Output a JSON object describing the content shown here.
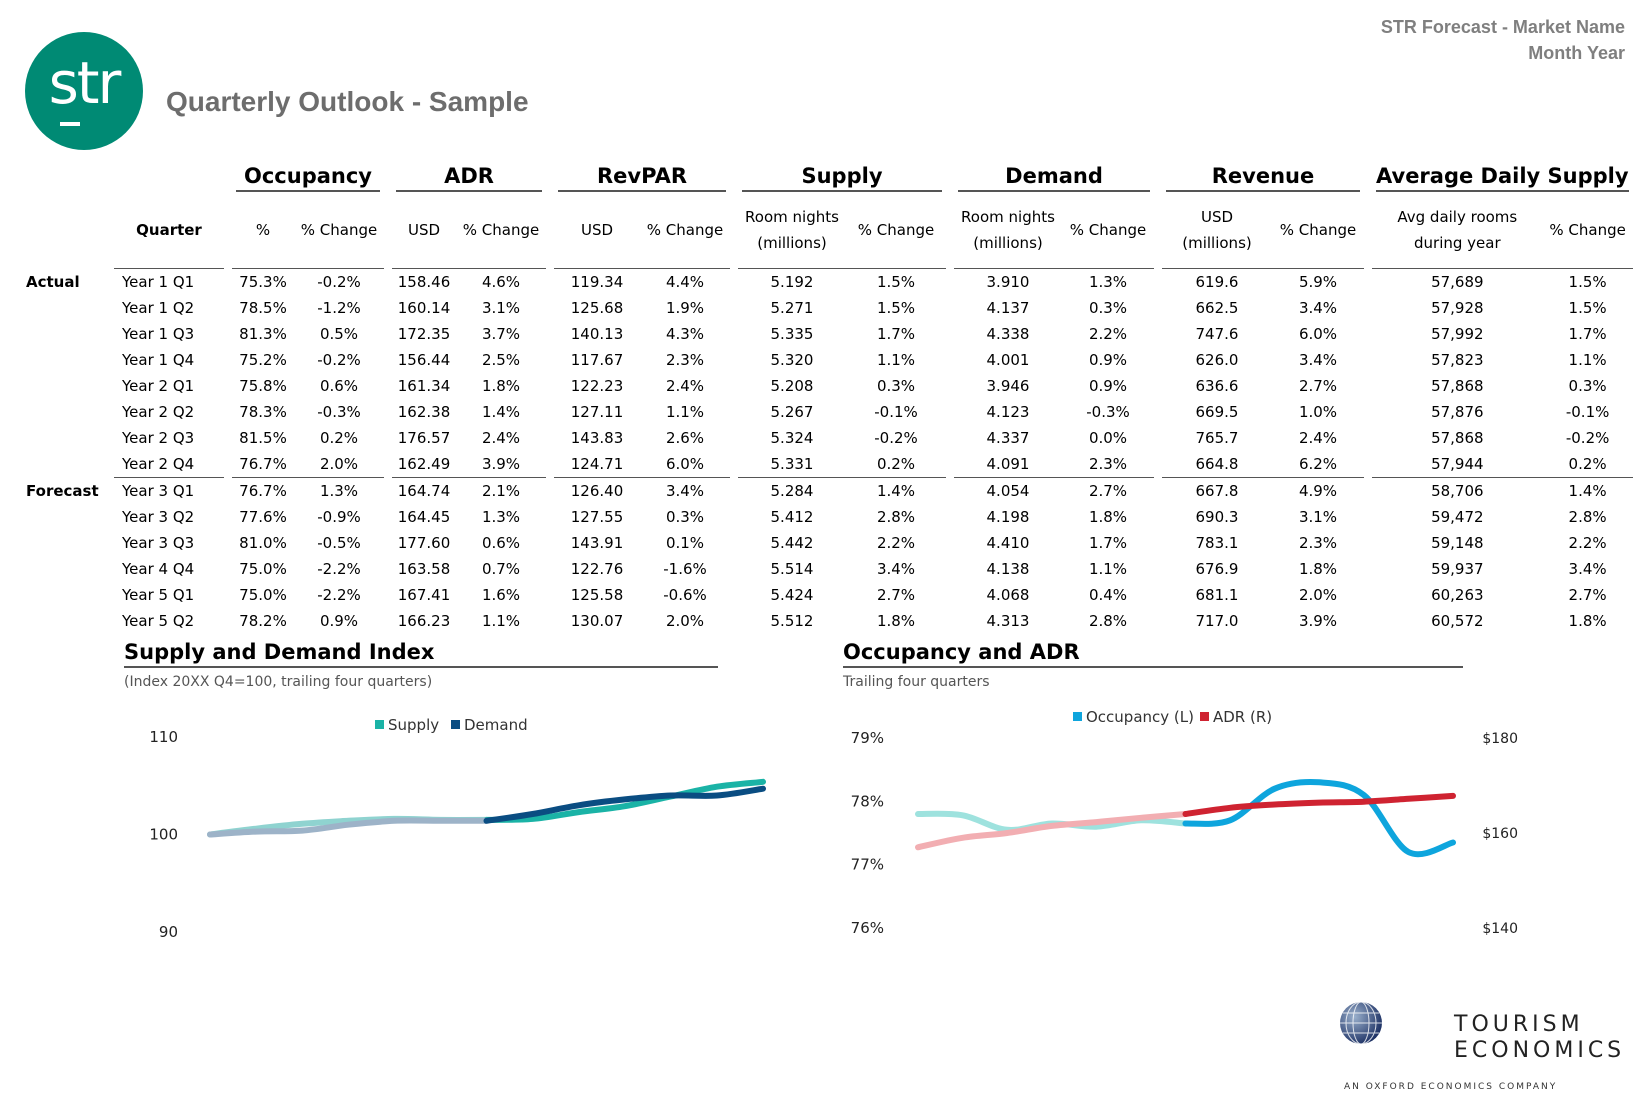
{
  "header": {
    "report_name": "STR Forecast - Market Name",
    "period": "Month Year",
    "title": "Quarterly Outlook - Sample",
    "logo_text": "str"
  },
  "table": {
    "groups": [
      "Occupancy",
      "ADR",
      "RevPAR",
      "Supply",
      "Demand",
      "Revenue",
      "Average Daily Supply"
    ],
    "subheaders": {
      "quarter": "Quarter",
      "occ_pct": "%",
      "change": "% Change",
      "usd": "USD",
      "room_nights_1": "Room nights",
      "room_nights_2": "(millions)",
      "rev_usd_1": "USD",
      "rev_usd_2": "(millions)",
      "avg_daily_1": "Avg daily rooms",
      "avg_daily_2": "during year"
    },
    "section_labels": {
      "actual": "Actual",
      "forecast": "Forecast"
    },
    "rows": [
      [
        "Year 1  Q1",
        "75.3%",
        "-0.2%",
        "158.46",
        "4.6%",
        "119.34",
        "4.4%",
        "5.192",
        "1.5%",
        "3.910",
        "1.3%",
        "619.6",
        "5.9%",
        "57,689",
        "1.5%"
      ],
      [
        "Year 1 Q2",
        "78.5%",
        "-1.2%",
        "160.14",
        "3.1%",
        "125.68",
        "1.9%",
        "5.271",
        "1.5%",
        "4.137",
        "0.3%",
        "662.5",
        "3.4%",
        "57,928",
        "1.5%"
      ],
      [
        "Year 1  Q3",
        "81.3%",
        "0.5%",
        "172.35",
        "3.7%",
        "140.13",
        "4.3%",
        "5.335",
        "1.7%",
        "4.338",
        "2.2%",
        "747.6",
        "6.0%",
        "57,992",
        "1.7%"
      ],
      [
        "Year 1 Q4",
        "75.2%",
        "-0.2%",
        "156.44",
        "2.5%",
        "117.67",
        "2.3%",
        "5.320",
        "1.1%",
        "4.001",
        "0.9%",
        "626.0",
        "3.4%",
        "57,823",
        "1.1%"
      ],
      [
        "Year 2 Q1",
        "75.8%",
        "0.6%",
        "161.34",
        "1.8%",
        "122.23",
        "2.4%",
        "5.208",
        "0.3%",
        "3.946",
        "0.9%",
        "636.6",
        "2.7%",
        "57,868",
        "0.3%"
      ],
      [
        "Year 2 Q2",
        "78.3%",
        "-0.3%",
        "162.38",
        "1.4%",
        "127.11",
        "1.1%",
        "5.267",
        "-0.1%",
        "4.123",
        "-0.3%",
        "669.5",
        "1.0%",
        "57,876",
        "-0.1%"
      ],
      [
        "Year 2 Q3",
        "81.5%",
        "0.2%",
        "176.57",
        "2.4%",
        "143.83",
        "2.6%",
        "5.324",
        "-0.2%",
        "4.337",
        "0.0%",
        "765.7",
        "2.4%",
        "57,868",
        "-0.2%"
      ],
      [
        "Year 2 Q4",
        "76.7%",
        "2.0%",
        "162.49",
        "3.9%",
        "124.71",
        "6.0%",
        "5.331",
        "0.2%",
        "4.091",
        "2.3%",
        "664.8",
        "6.2%",
        "57,944",
        "0.2%"
      ],
      [
        "Year 3 Q1",
        "76.7%",
        "1.3%",
        "164.74",
        "2.1%",
        "126.40",
        "3.4%",
        "5.284",
        "1.4%",
        "4.054",
        "2.7%",
        "667.8",
        "4.9%",
        "58,706",
        "1.4%"
      ],
      [
        "Year 3 Q2",
        "77.6%",
        "-0.9%",
        "164.45",
        "1.3%",
        "127.55",
        "0.3%",
        "5.412",
        "2.8%",
        "4.198",
        "1.8%",
        "690.3",
        "3.1%",
        "59,472",
        "2.8%"
      ],
      [
        "Year 3 Q3",
        "81.0%",
        "-0.5%",
        "177.60",
        "0.6%",
        "143.91",
        "0.1%",
        "5.442",
        "2.2%",
        "4.410",
        "1.7%",
        "783.1",
        "2.3%",
        "59,148",
        "2.2%"
      ],
      [
        "Year 4 Q4",
        "75.0%",
        "-2.2%",
        "163.58",
        "0.7%",
        "122.76",
        "-1.6%",
        "5.514",
        "3.4%",
        "4.138",
        "1.1%",
        "676.9",
        "1.8%",
        "59,937",
        "3.4%"
      ],
      [
        "Year 5 Q1",
        "75.0%",
        "-2.2%",
        "167.41",
        "1.6%",
        "125.58",
        "-0.6%",
        "5.424",
        "2.7%",
        "4.068",
        "0.4%",
        "681.1",
        "2.0%",
        "60,263",
        "2.7%"
      ],
      [
        "Year 5 Q2",
        "78.2%",
        "0.9%",
        "166.23",
        "1.1%",
        "130.07",
        "2.0%",
        "5.512",
        "1.8%",
        "4.313",
        "2.8%",
        "717.0",
        "3.9%",
        "60,572",
        "1.8%"
      ]
    ]
  },
  "chart_left": {
    "title": "Supply and Demand Index",
    "subtitle": "(Index 20XX Q4=100, trailing four quarters)"
  },
  "chart_right": {
    "title": "Occupancy and ADR",
    "subtitle": "Trailing four quarters"
  },
  "chart_data": [
    {
      "type": "line",
      "title": "Supply and Demand Index",
      "subtitle": "(Index 20XX Q4=100, trailing four quarters)",
      "ylim": [
        90,
        110
      ],
      "yticks": [
        "110",
        "100",
        "90"
      ],
      "legend_position": "top-center",
      "forecast_start_index": 6,
      "series": [
        {
          "name": "Supply",
          "color": "#1ab3a6",
          "actual_color": "#8fd3d0",
          "values": [
            100.0,
            100.6,
            101.1,
            101.4,
            101.6,
            101.5,
            101.5,
            101.6,
            102.3,
            102.9,
            103.9,
            104.9,
            105.4
          ]
        },
        {
          "name": "Demand",
          "color": "#0a4d82",
          "actual_color": "#9db3c8",
          "values": [
            100.0,
            100.3,
            100.4,
            101.0,
            101.4,
            101.4,
            101.4,
            102.1,
            103.0,
            103.6,
            104.0,
            104.0,
            104.7
          ]
        }
      ]
    },
    {
      "type": "line",
      "title": "Occupancy and ADR",
      "subtitle": "Trailing four quarters",
      "ylim_left": [
        76,
        79
      ],
      "ylim_right": [
        140,
        180
      ],
      "yticks_left": [
        "79%",
        "78%",
        "77%",
        "76%"
      ],
      "yticks_right": [
        "$180",
        "$160",
        "$140"
      ],
      "legend_position": "top-center",
      "forecast_start_index": 6,
      "series": [
        {
          "name": "Occupancy (L)",
          "axis": "left",
          "color": "#0ea5dd",
          "actual_color": "#9ee2de",
          "values": [
            77.8,
            77.78,
            77.55,
            77.65,
            77.6,
            77.7,
            77.65,
            77.7,
            78.2,
            78.3,
            78.1,
            77.2,
            77.35
          ]
        },
        {
          "name": "ADR (R)",
          "axis": "right",
          "color": "#cf2331",
          "actual_color": "#f2aeb2",
          "values": [
            157.0,
            159.0,
            160.0,
            161.5,
            162.3,
            163.2,
            164.0,
            165.3,
            166.0,
            166.4,
            166.6,
            167.2,
            167.8
          ]
        }
      ]
    }
  ],
  "footer": {
    "brand_line1": "TOURISM",
    "brand_line2": "ECONOMICS",
    "brand_tagline": "AN OXFORD ECONOMICS COMPANY"
  }
}
